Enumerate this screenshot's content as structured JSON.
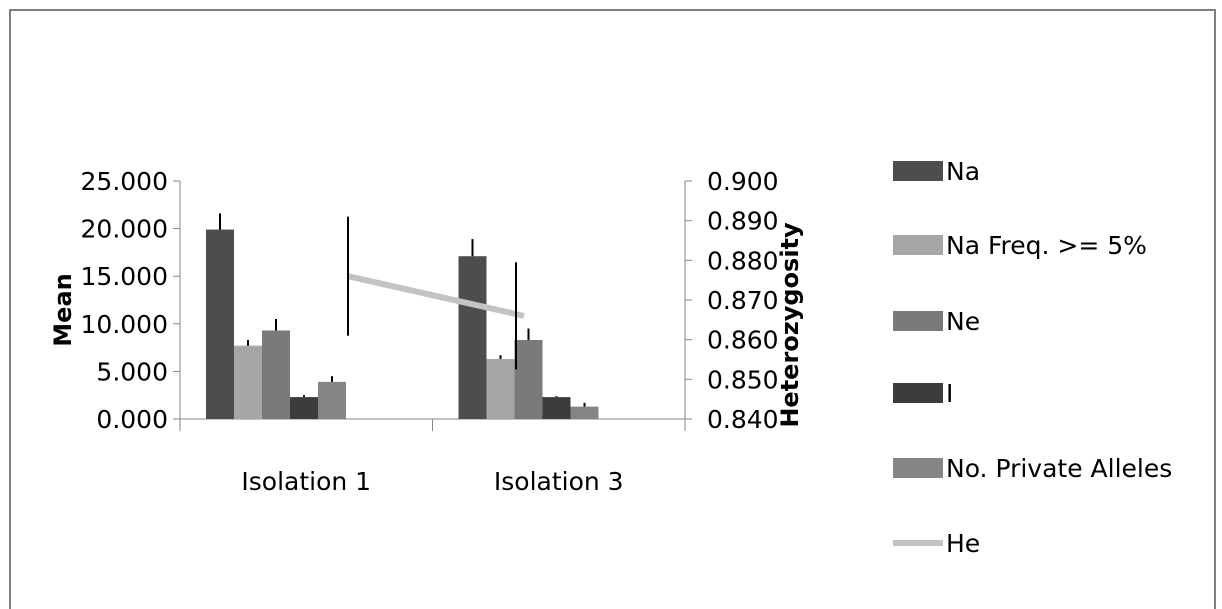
{
  "chart_data": {
    "type": "bar",
    "categories": [
      "Isolation 1",
      "Isolation 3"
    ],
    "series": [
      {
        "name": "Na",
        "values": [
          19.9,
          17.1
        ],
        "errors": [
          1.7,
          1.8
        ],
        "color": "#4d4d4d",
        "axis": "left"
      },
      {
        "name": "Na Freq. >= 5%",
        "values": [
          7.7,
          6.3
        ],
        "errors": [
          0.6,
          0.4
        ],
        "color": "#a6a6a6",
        "axis": "left"
      },
      {
        "name": "Ne",
        "values": [
          9.3,
          8.3
        ],
        "errors": [
          1.2,
          1.2
        ],
        "color": "#7a7a7a",
        "axis": "left"
      },
      {
        "name": "I",
        "values": [
          2.3,
          2.3
        ],
        "errors": [
          0.2,
          0.1
        ],
        "color": "#3c3c3c",
        "axis": "left"
      },
      {
        "name": "No. Private Alleles",
        "values": [
          3.9,
          1.3
        ],
        "errors": [
          0.6,
          0.4
        ],
        "color": "#858585",
        "axis": "left"
      },
      {
        "name": "He",
        "values": [
          0.876,
          0.866
        ],
        "errors": [
          0.015,
          0.0135
        ],
        "color": "#c3c3c3",
        "axis": "right",
        "kind": "line"
      }
    ],
    "ylabel": "Mean",
    "y2label": "Heterozygosity",
    "ylim": [
      0,
      25
    ],
    "y2lim": [
      0.84,
      0.9
    ],
    "yticks": [
      "0.000",
      "5.000",
      "10.000",
      "15.000",
      "20.000",
      "25.000"
    ],
    "y2ticks": [
      "0.840",
      "0.850",
      "0.860",
      "0.870",
      "0.880",
      "0.890",
      "0.900"
    ],
    "legend_position": "right",
    "grid": false
  }
}
